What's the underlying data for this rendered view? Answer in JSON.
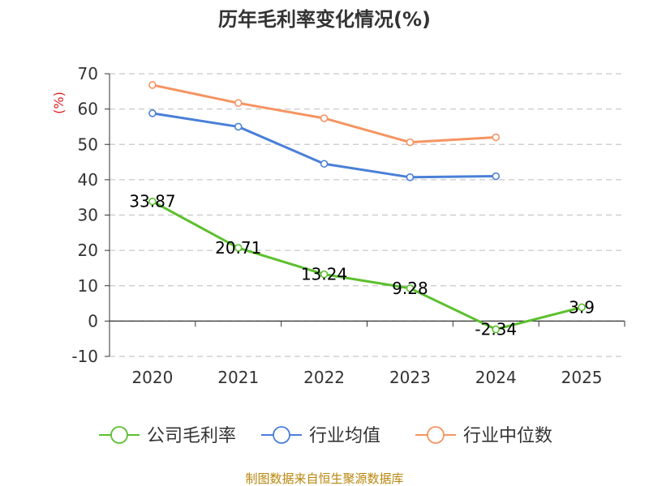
{
  "chart_data": {
    "type": "line",
    "title": "历年毛利率变化情况(%)",
    "ylabel": "(%)",
    "xlabel": "",
    "categories": [
      "2020",
      "2021",
      "2022",
      "2023",
      "2024",
      "2025"
    ],
    "ylim": [
      -10,
      70
    ],
    "yticks": [
      -10,
      0,
      10,
      20,
      30,
      40,
      50,
      60,
      70
    ],
    "ytick_labels": [
      "-10",
      "0",
      "10",
      "20",
      "30",
      "40",
      "50",
      "60",
      "70"
    ],
    "grid": true,
    "legend_position": "bottom",
    "series": [
      {
        "name": "公司毛利率",
        "color": "#5cc02e",
        "values": [
          33.87,
          20.71,
          13.24,
          9.28,
          -2.34,
          3.9
        ],
        "labels": [
          "33.87",
          "20.71",
          "13.24",
          "9.28",
          "-2.34",
          "3.9"
        ]
      },
      {
        "name": "行业均值",
        "color": "#4a7fd8",
        "values": [
          58.8,
          55.0,
          44.5,
          40.7,
          41.0,
          null
        ]
      },
      {
        "name": "行业中位数",
        "color": "#f59462",
        "values": [
          66.8,
          61.7,
          57.4,
          50.6,
          52.0,
          null
        ]
      }
    ]
  },
  "source_text": "制图数据来自恒生聚源数据库"
}
